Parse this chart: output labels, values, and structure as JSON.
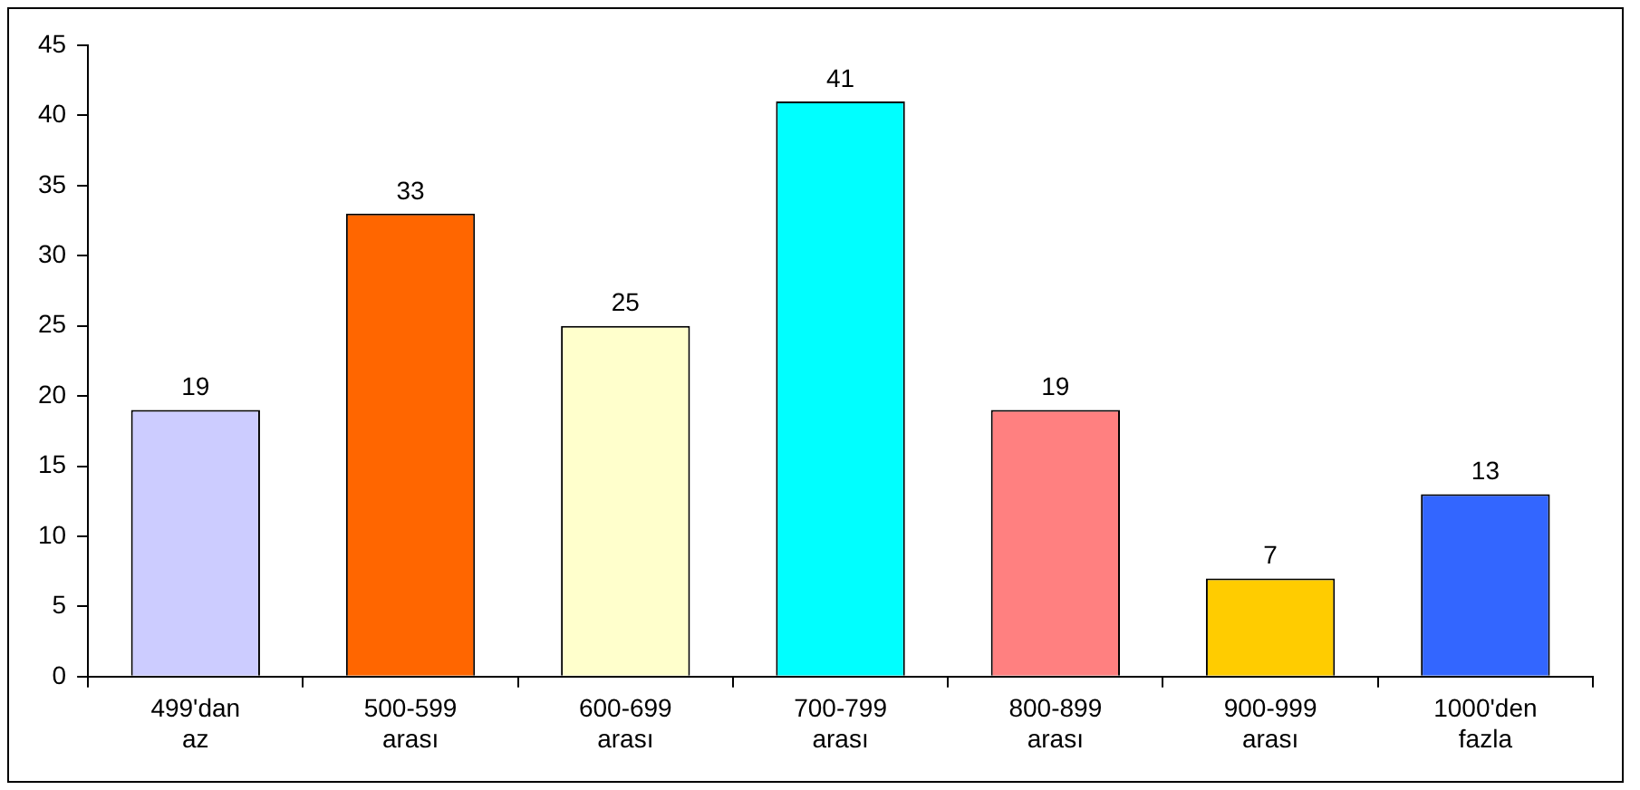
{
  "chart_data": {
    "type": "bar",
    "categories": [
      "499'dan az",
      "500-599 arası",
      "600-699 arası",
      "700-799 arası",
      "800-899 arası",
      "900-999 arası",
      "1000'den fazla"
    ],
    "values": [
      19,
      33,
      25,
      41,
      19,
      7,
      13
    ],
    "colors": [
      "#ccccff",
      "#ff6600",
      "#ffffcc",
      "#00ffff",
      "#ff8080",
      "#ffcc00",
      "#3366ff"
    ],
    "ylim": [
      0,
      45
    ],
    "yticks": [
      0,
      5,
      10,
      15,
      20,
      25,
      30,
      35,
      40,
      45
    ],
    "grid": false,
    "legend": false,
    "data_labels": true
  }
}
